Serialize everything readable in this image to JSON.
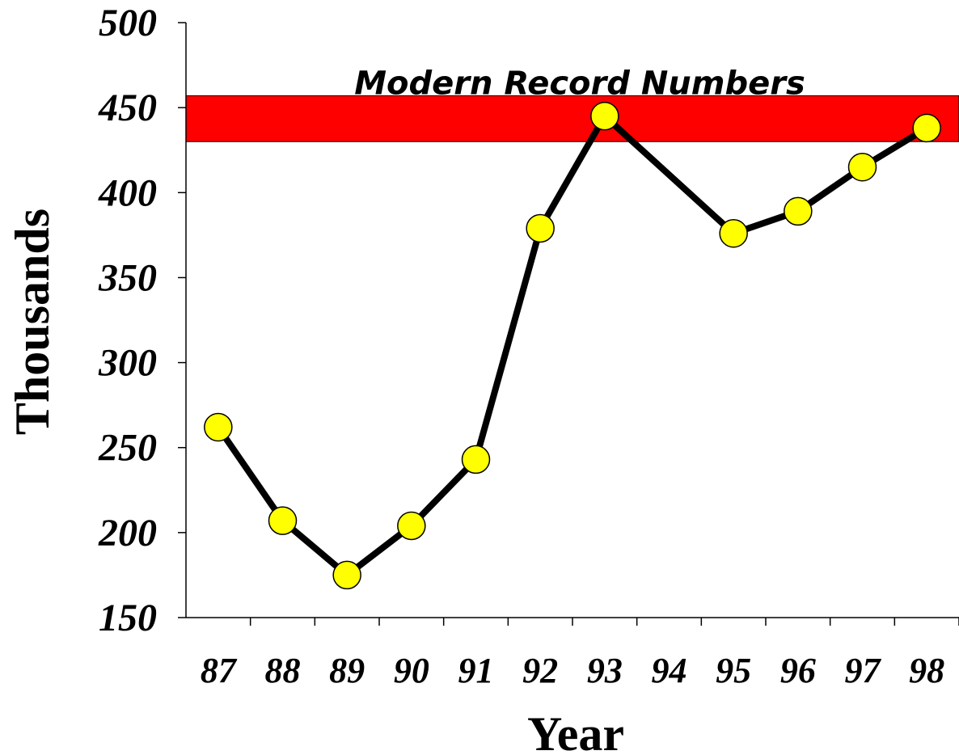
{
  "chart_data": {
    "type": "line",
    "xlabel": "Year",
    "ylabel": "Thousands",
    "categories": [
      "87",
      "88",
      "89",
      "90",
      "91",
      "92",
      "93",
      "94",
      "95",
      "96",
      "97",
      "98"
    ],
    "series": [
      {
        "values": [
          262,
          207,
          175,
          204,
          243,
          379,
          445,
          null,
          376,
          389,
          415,
          438
        ]
      }
    ],
    "ylim": [
      150,
      500
    ],
    "yticks": [
      "150",
      "200",
      "250",
      "300",
      "350",
      "400",
      "450",
      "500"
    ],
    "band": {
      "label": "Modern Record Numbers",
      "from": 430,
      "to": 457,
      "color": "#ff0000"
    },
    "line_color": "#000000",
    "marker_color": "#ffff00",
    "grid": false
  }
}
